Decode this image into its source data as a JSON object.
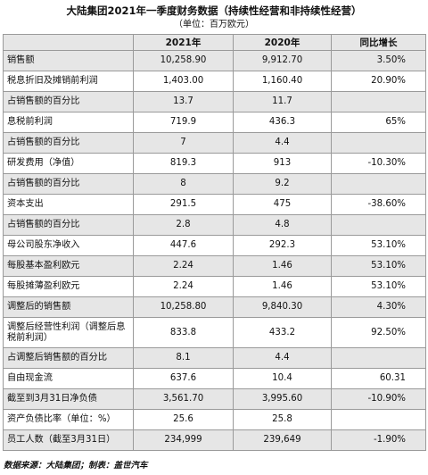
{
  "header": {
    "title": "大陆集团2021年一季度财务数据（持续性经营和非持续性经营）",
    "unit": "（单位：百万欧元）"
  },
  "table": {
    "columns": [
      "",
      "2021年",
      "2020年",
      "同比增长"
    ],
    "rows": [
      [
        "销售额",
        "10,258.90",
        "9,912.70",
        "3.50%"
      ],
      [
        "税息折旧及摊销前利润",
        "1,403.00",
        "1,160.40",
        "20.90%"
      ],
      [
        "占销售额的百分比",
        "13.7",
        "11.7",
        ""
      ],
      [
        "息税前利润",
        "719.9",
        "436.3",
        "65%"
      ],
      [
        "占销售额的百分比",
        "7",
        "4.4",
        ""
      ],
      [
        "研发费用（净值）",
        "819.3",
        "913",
        "-10.30%"
      ],
      [
        "占销售额的百分比",
        "8",
        "9.2",
        ""
      ],
      [
        "资本支出",
        "291.5",
        "475",
        "-38.60%"
      ],
      [
        "占销售额的百分比",
        "2.8",
        "4.8",
        ""
      ],
      [
        "母公司股东净收入",
        "447.6",
        "292.3",
        "53.10%"
      ],
      [
        "每股基本盈利欧元",
        "2.24",
        "1.46",
        "53.10%"
      ],
      [
        "每股摊薄盈利欧元",
        "2.24",
        "1.46",
        "53.10%"
      ],
      [
        "调整后的销售额",
        "10,258.80",
        "9,840.30",
        "4.30%"
      ],
      [
        "调整后经营性利润（调整后息税前利润）",
        "833.8",
        "433.2",
        "92.50%"
      ],
      [
        "占调整后销售额的百分比",
        "8.1",
        "4.4",
        ""
      ],
      [
        "自由现金流",
        "637.6",
        "10.4",
        "60.31"
      ],
      [
        "截至到3月31日净负债",
        "3,561.70",
        "3,995.60",
        "-10.90%"
      ],
      [
        "资产负债比率（单位：%）",
        "25.6",
        "25.8",
        ""
      ],
      [
        "员工人数（截至3月31日）",
        "234,999",
        "239,649",
        "-1.90%"
      ]
    ]
  },
  "footer": {
    "source": "数据来源：大陆集团；制表：盖世汽车"
  }
}
